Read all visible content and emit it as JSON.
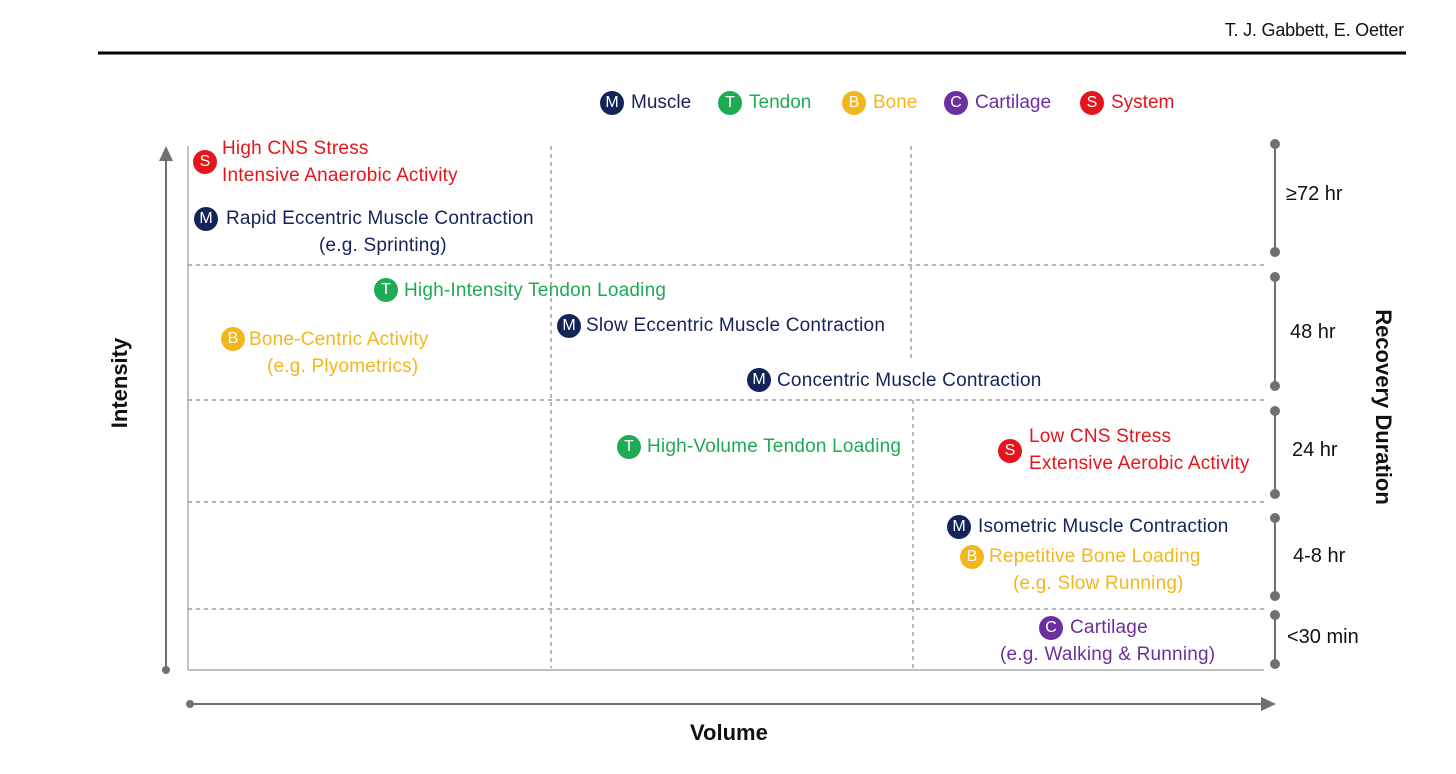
{
  "colors": {
    "muscle": "#13245b",
    "tendon": "#1faa55",
    "bone": "#f2b71c",
    "cartilage": "#6b2fa0",
    "system": "#e4151c",
    "grid": "#888888",
    "axis": "#707070"
  },
  "header": {
    "author": "T. J. Gabbett, E. Oetter"
  },
  "legend": [
    {
      "letter": "M",
      "label": "Muscle",
      "color": "#13245b"
    },
    {
      "letter": "T",
      "label": "Tendon",
      "color": "#1faa55"
    },
    {
      "letter": "B",
      "label": "Bone",
      "color": "#f2b71c"
    },
    {
      "letter": "C",
      "label": "Cartilage",
      "color": "#6b2fa0"
    },
    {
      "letter": "S",
      "label": "System",
      "color": "#e4151c"
    }
  ],
  "axes": {
    "y_title": "Intensity",
    "x_title": "Volume",
    "right_title": "Recovery Duration"
  },
  "recovery_bands": [
    "≥72 hr",
    "48 hr",
    "24 hr",
    "4-8 hr",
    "<30 min"
  ],
  "items": {
    "high_cns": {
      "letter": "S",
      "line1": "High CNS Stress",
      "line2": "Intensive Anaerobic Activity"
    },
    "rapid_eccentric": {
      "letter": "M",
      "line1": "Rapid Eccentric Muscle Contraction",
      "line2": "(e.g. Sprinting)"
    },
    "high_intensity_tendon": {
      "letter": "T",
      "line1": "High-Intensity Tendon Loading"
    },
    "bone_centric": {
      "letter": "B",
      "line1": "Bone-Centric Activity",
      "line2": "(e.g. Plyometrics)"
    },
    "slow_eccentric": {
      "letter": "M",
      "line1": "Slow Eccentric Muscle Contraction"
    },
    "concentric": {
      "letter": "M",
      "line1": "Concentric Muscle Contraction"
    },
    "high_volume_tendon": {
      "letter": "T",
      "line1": "High-Volume Tendon Loading"
    },
    "low_cns": {
      "letter": "S",
      "line1": "Low CNS Stress",
      "line2": "Extensive Aerobic Activity"
    },
    "isometric": {
      "letter": "M",
      "line1": "Isometric Muscle Contraction"
    },
    "repetitive_bone": {
      "letter": "B",
      "line1": "Repetitive Bone Loading",
      "line2": "(e.g. Slow Running)"
    },
    "cartilage": {
      "letter": "C",
      "line1": "Cartilage",
      "line2": "(e.g. Walking & Running)"
    }
  }
}
